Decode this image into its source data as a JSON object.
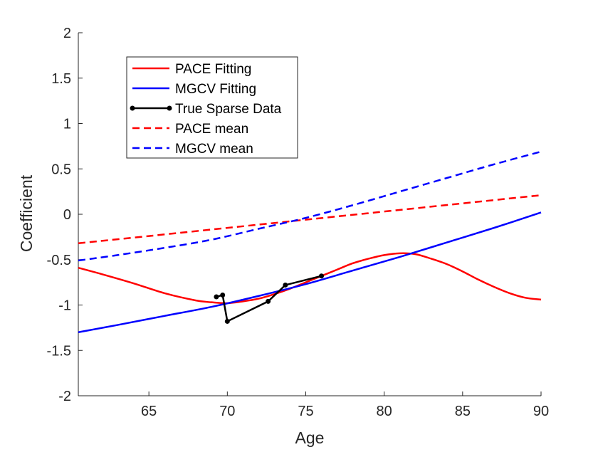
{
  "chart_data": {
    "type": "line",
    "title": "",
    "xlabel": "Age",
    "ylabel": "Coefficient",
    "xlim": [
      60.5,
      90
    ],
    "ylim": [
      -2,
      2
    ],
    "xticks": [
      65,
      70,
      75,
      80,
      85,
      90
    ],
    "yticks": [
      -2,
      -1.5,
      -1,
      -0.5,
      0,
      0.5,
      1,
      1.5,
      2
    ],
    "grid": false,
    "legend_position": "top-left",
    "series": [
      {
        "name": "PACE Fitting",
        "color": "#ff0000",
        "style": "solid",
        "marker": "none",
        "x": [
          60.5,
          62,
          64,
          66,
          68,
          69,
          70,
          71,
          72,
          73,
          74,
          75,
          76,
          77,
          78,
          79,
          80,
          81,
          82,
          83,
          84,
          85,
          86,
          87,
          88,
          89,
          90
        ],
        "y": [
          -0.59,
          -0.66,
          -0.76,
          -0.87,
          -0.95,
          -0.97,
          -0.98,
          -0.96,
          -0.93,
          -0.88,
          -0.82,
          -0.75,
          -0.68,
          -0.61,
          -0.54,
          -0.49,
          -0.45,
          -0.43,
          -0.44,
          -0.49,
          -0.55,
          -0.63,
          -0.72,
          -0.8,
          -0.87,
          -0.92,
          -0.94
        ]
      },
      {
        "name": "MGCV Fitting",
        "color": "#0000ff",
        "style": "solid",
        "marker": "none",
        "x": [
          60.5,
          63,
          66,
          69,
          72,
          75,
          78,
          81,
          84,
          87,
          90
        ],
        "y": [
          -1.3,
          -1.22,
          -1.12,
          -1.02,
          -0.9,
          -0.77,
          -0.62,
          -0.47,
          -0.31,
          -0.15,
          0.02
        ]
      },
      {
        "name": "True Sparse Data",
        "color": "#000000",
        "style": "solid",
        "marker": "circle",
        "x": [
          69.3,
          69.7,
          70.0,
          72.6,
          73.7,
          76.0
        ],
        "y": [
          -0.91,
          -0.89,
          -1.18,
          -0.96,
          -0.78,
          -0.68
        ]
      },
      {
        "name": "PACE mean",
        "color": "#ff0000",
        "style": "dashed",
        "marker": "none",
        "x": [
          60.5,
          65,
          70,
          75,
          80,
          85,
          90
        ],
        "y": [
          -0.32,
          -0.24,
          -0.15,
          -0.06,
          0.03,
          0.12,
          0.21
        ]
      },
      {
        "name": "MGCV mean",
        "color": "#0000ff",
        "style": "dashed",
        "marker": "none",
        "x": [
          60.5,
          63,
          66,
          69,
          72,
          75,
          78,
          81,
          84,
          87,
          90
        ],
        "y": [
          -0.51,
          -0.45,
          -0.37,
          -0.28,
          -0.16,
          -0.04,
          0.1,
          0.25,
          0.4,
          0.55,
          0.69
        ]
      }
    ]
  }
}
